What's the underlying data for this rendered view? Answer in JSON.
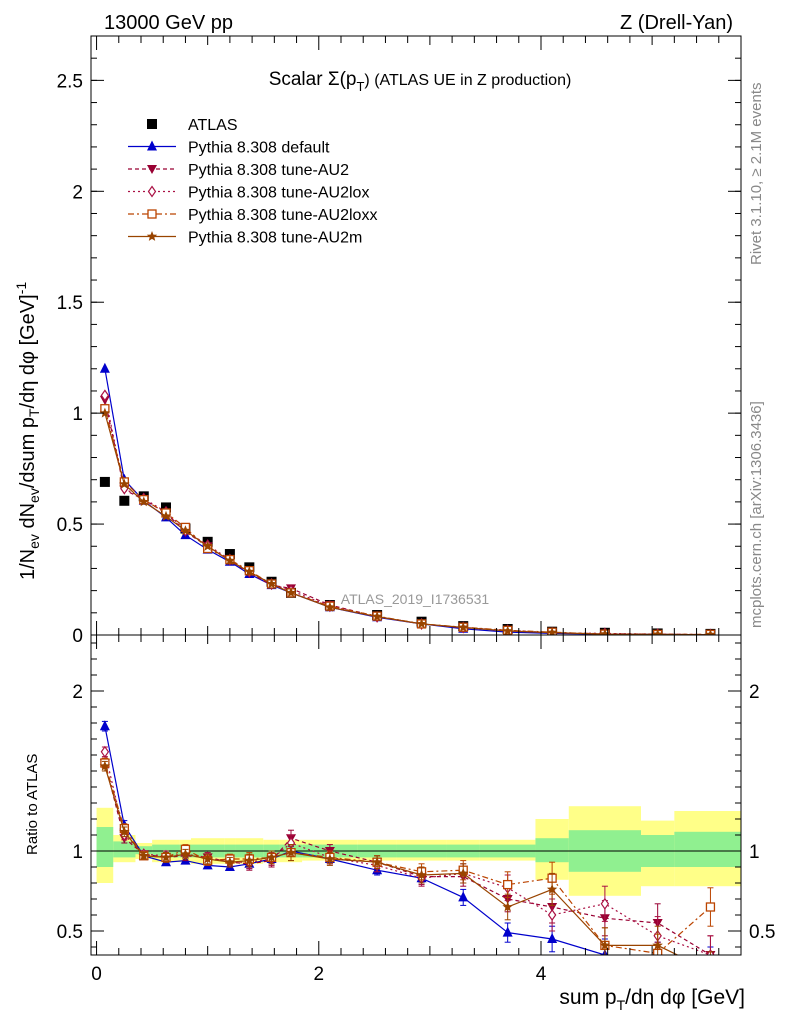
{
  "header": {
    "energy_label": "13000 GeV pp",
    "process_label": "Z (Drell-Yan)"
  },
  "side_labels": {
    "rivet": "Rivet 3.1.10, ≥ 2.1M events",
    "source": "mcplots.cern.ch [arXiv:1306.3436]"
  },
  "watermark": "ATLAS_2019_I1736531",
  "colors": {
    "atlas": "#000000",
    "default": "#0000cc",
    "au2": "#990033",
    "au2lox": "#aa1144",
    "au2loxx": "#bb4400",
    "au2m": "#994400",
    "band_inner": "#90f090",
    "band_outer": "#ffff88"
  },
  "chart_data": [
    {
      "type": "line",
      "title": "Scalar Σ(p_T) (ATLAS UE in Z production)",
      "title_main": "Scalar Σ(p",
      "title_sub": "T",
      "title_rest": ") (ATLAS UE in Z production)",
      "ylabel": "1/N_ev dN_ev/dsum p_T/dη dφ [GeV]^-1",
      "ylim": [
        0,
        2.7
      ],
      "xlim": [
        -0.05,
        5.8
      ],
      "y_ticks": [
        {
          "v": 0,
          "label": "0"
        },
        {
          "v": 0.5,
          "label": "0.5"
        },
        {
          "v": 1,
          "label": "1"
        },
        {
          "v": 1.5,
          "label": "1.5"
        },
        {
          "v": 2,
          "label": "2"
        },
        {
          "v": 2.5,
          "label": "2.5"
        }
      ],
      "legend_position": "top-left",
      "x": [
        0.075,
        0.25,
        0.425,
        0.625,
        0.8,
        1.0,
        1.2,
        1.375,
        1.575,
        1.75,
        2.1,
        2.525,
        2.925,
        3.3,
        3.7,
        4.1,
        4.575,
        5.05,
        5.525
      ],
      "series": [
        {
          "key": "atlas",
          "name": "ATLAS",
          "marker": "square",
          "dash": "none",
          "values": [
            0.69,
            0.605,
            0.625,
            0.575,
            0.48,
            0.42,
            0.365,
            0.305,
            0.24,
            0.19,
            0.135,
            0.09,
            0.06,
            0.04,
            0.027,
            0.015,
            0.01,
            0.007,
            0.005
          ]
        },
        {
          "key": "default",
          "name": "Pythia 8.308 default",
          "marker": "triangle-up",
          "dash": "none",
          "values": [
            1.2,
            0.7,
            0.605,
            0.53,
            0.45,
            0.385,
            0.33,
            0.275,
            0.225,
            0.19,
            0.125,
            0.08,
            0.05,
            0.028,
            0.013,
            0.007,
            0.004,
            0.003,
            0.001
          ]
        },
        {
          "key": "au2",
          "name": "Pythia 8.308 tune-AU2",
          "marker": "triangle-down",
          "dash": "4,3",
          "values": [
            1.06,
            0.655,
            0.61,
            0.55,
            0.465,
            0.4,
            0.335,
            0.28,
            0.225,
            0.21,
            0.135,
            0.083,
            0.05,
            0.033,
            0.02,
            0.01,
            0.006,
            0.004,
            0.0015
          ]
        },
        {
          "key": "au2lox",
          "name": "Pythia 8.308 tune-AU2lox",
          "marker": "diamond-open",
          "dash": "2,3",
          "values": [
            1.08,
            0.66,
            0.615,
            0.555,
            0.47,
            0.405,
            0.34,
            0.285,
            0.23,
            0.2,
            0.13,
            0.082,
            0.05,
            0.034,
            0.021,
            0.01,
            0.007,
            0.0035,
            0.0018
          ]
        },
        {
          "key": "au2loxx",
          "name": "Pythia 8.308 tune-AU2loxx",
          "marker": "square-open",
          "dash": "6,3,2,3",
          "values": [
            1.02,
            0.69,
            0.61,
            0.55,
            0.485,
            0.39,
            0.34,
            0.29,
            0.23,
            0.19,
            0.13,
            0.085,
            0.05,
            0.035,
            0.021,
            0.0125,
            0.004,
            0.0026,
            0.003
          ]
        },
        {
          "key": "au2m",
          "name": "Pythia 8.308 tune-AU2m",
          "marker": "star",
          "dash": "none",
          "values": [
            1.0,
            0.68,
            0.6,
            0.535,
            0.47,
            0.4,
            0.335,
            0.285,
            0.23,
            0.19,
            0.125,
            0.083,
            0.05,
            0.034,
            0.018,
            0.011,
            0.004,
            0.0027,
            0.0012
          ]
        }
      ]
    },
    {
      "type": "line",
      "title": "",
      "ylabel": "Ratio to ATLAS",
      "xlabel": "sum p_T/dη dφ [GeV]",
      "xlabel_main": "sum p",
      "xlabel_sub": "T",
      "xlabel_rest": "/dη dφ [GeV]",
      "ylim": [
        0.35,
        2.35
      ],
      "xlim": [
        -0.05,
        5.8
      ],
      "y_ticks": [
        {
          "v": 0.5,
          "label": "0.5"
        },
        {
          "v": 1,
          "label": "1"
        },
        {
          "v": 2,
          "label": "2"
        }
      ],
      "x_ticks": [
        {
          "v": 0,
          "label": "0"
        },
        {
          "v": 2,
          "label": "2"
        },
        {
          "v": 4,
          "label": "4"
        }
      ],
      "x": [
        0.075,
        0.25,
        0.425,
        0.625,
        0.8,
        1.0,
        1.2,
        1.375,
        1.575,
        1.75,
        2.1,
        2.525,
        2.925,
        3.3,
        3.7,
        4.1,
        4.575,
        5.05,
        5.525
      ],
      "bin_edges": [
        0.0,
        0.15,
        0.35,
        0.5,
        0.75,
        0.85,
        1.15,
        1.25,
        1.5,
        1.65,
        1.85,
        2.35,
        2.7,
        3.15,
        3.45,
        3.95,
        4.25,
        4.9,
        5.2,
        5.85
      ],
      "band_inner": [
        [
          0.9,
          1.15
        ],
        [
          0.96,
          1.06
        ],
        [
          0.98,
          1.03
        ],
        [
          0.96,
          1.04
        ],
        [
          0.96,
          1.04
        ],
        [
          0.96,
          1.04
        ],
        [
          0.96,
          1.04
        ],
        [
          0.96,
          1.04
        ],
        [
          0.96,
          1.04
        ],
        [
          0.96,
          1.04
        ],
        [
          0.96,
          1.04
        ],
        [
          0.96,
          1.04
        ],
        [
          0.96,
          1.04
        ],
        [
          0.96,
          1.04
        ],
        [
          0.96,
          1.04
        ],
        [
          0.93,
          1.08
        ],
        [
          0.87,
          1.13
        ],
        [
          0.9,
          1.1
        ],
        [
          0.9,
          1.12
        ]
      ],
      "band_outer": [
        [
          0.8,
          1.27
        ],
        [
          0.93,
          1.1
        ],
        [
          0.95,
          1.05
        ],
        [
          0.93,
          1.07
        ],
        [
          0.93,
          1.07
        ],
        [
          0.92,
          1.08
        ],
        [
          0.92,
          1.08
        ],
        [
          0.92,
          1.08
        ],
        [
          0.93,
          1.07
        ],
        [
          0.93,
          1.07
        ],
        [
          0.94,
          1.07
        ],
        [
          0.94,
          1.07
        ],
        [
          0.94,
          1.07
        ],
        [
          0.94,
          1.07
        ],
        [
          0.94,
          1.07
        ],
        [
          0.82,
          1.2
        ],
        [
          0.72,
          1.28
        ],
        [
          0.78,
          1.19
        ],
        [
          0.78,
          1.25
        ]
      ],
      "series": [
        {
          "key": "default",
          "name": "Pythia 8.308 default",
          "marker": "triangle-up",
          "dash": "none",
          "values": [
            1.78,
            1.16,
            0.97,
            0.93,
            0.94,
            0.91,
            0.9,
            0.92,
            0.95,
            1.0,
            0.95,
            0.88,
            0.83,
            0.71,
            0.49,
            0.45,
            0.35,
            0.33,
            0.3
          ],
          "errors": [
            0.03,
            0.03,
            0.02,
            0.02,
            0.02,
            0.02,
            0.02,
            0.03,
            0.03,
            0.03,
            0.03,
            0.03,
            0.03,
            0.05,
            0.06,
            0.08,
            0.1,
            0.1,
            0.1
          ]
        },
        {
          "key": "au2",
          "name": "Pythia 8.308 tune-AU2",
          "marker": "triangle-down",
          "dash": "4,3",
          "values": [
            1.55,
            1.08,
            0.98,
            0.96,
            0.97,
            0.96,
            0.93,
            0.92,
            0.94,
            1.08,
            1.0,
            0.93,
            0.84,
            0.84,
            0.7,
            0.65,
            0.58,
            0.55,
            0.35
          ],
          "errors": [
            0.03,
            0.03,
            0.02,
            0.03,
            0.03,
            0.03,
            0.03,
            0.04,
            0.04,
            0.05,
            0.04,
            0.04,
            0.05,
            0.06,
            0.08,
            0.1,
            0.11,
            0.12,
            0.12
          ]
        },
        {
          "key": "au2lox",
          "name": "Pythia 8.308 tune-AU2lox",
          "marker": "diamond-open",
          "dash": "2,3",
          "values": [
            1.62,
            1.1,
            0.98,
            0.97,
            0.98,
            0.96,
            0.93,
            0.93,
            0.95,
            1.05,
            0.96,
            0.91,
            0.83,
            0.86,
            0.77,
            0.6,
            0.67,
            0.47,
            0.35
          ],
          "errors": [
            0.03,
            0.03,
            0.02,
            0.03,
            0.03,
            0.03,
            0.03,
            0.04,
            0.04,
            0.05,
            0.04,
            0.04,
            0.05,
            0.06,
            0.08,
            0.1,
            0.11,
            0.12,
            0.12
          ]
        },
        {
          "key": "au2loxx",
          "name": "Pythia 8.308 tune-AU2loxx",
          "marker": "square-open",
          "dash": "6,3,2,3",
          "values": [
            1.55,
            1.14,
            0.97,
            0.96,
            1.01,
            0.94,
            0.95,
            0.95,
            0.96,
            0.99,
            0.96,
            0.93,
            0.87,
            0.88,
            0.79,
            0.83,
            0.41,
            0.36,
            0.65
          ],
          "errors": [
            0.03,
            0.03,
            0.02,
            0.03,
            0.03,
            0.03,
            0.03,
            0.04,
            0.04,
            0.05,
            0.04,
            0.04,
            0.05,
            0.06,
            0.08,
            0.1,
            0.11,
            0.12,
            0.12
          ]
        },
        {
          "key": "au2m",
          "name": "Pythia 8.308 tune-AU2m",
          "marker": "star",
          "dash": "none",
          "values": [
            1.53,
            1.12,
            0.97,
            0.96,
            0.98,
            0.95,
            0.93,
            0.94,
            0.96,
            0.99,
            0.95,
            0.93,
            0.85,
            0.86,
            0.65,
            0.76,
            0.41,
            0.41,
            0.25
          ],
          "errors": [
            0.03,
            0.03,
            0.02,
            0.03,
            0.03,
            0.03,
            0.03,
            0.04,
            0.04,
            0.05,
            0.04,
            0.04,
            0.05,
            0.06,
            0.08,
            0.1,
            0.11,
            0.12,
            0.12
          ]
        }
      ]
    }
  ]
}
